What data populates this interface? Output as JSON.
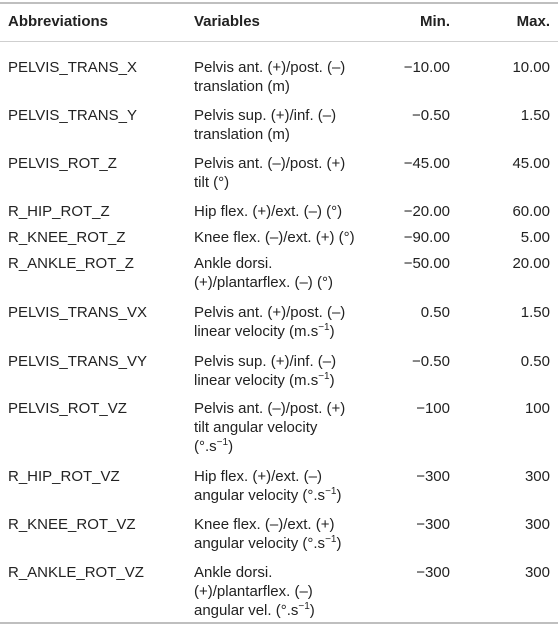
{
  "table": {
    "headers": {
      "abbr": "Abbreviations",
      "var": "Variables",
      "min": "Min.",
      "max": "Max."
    },
    "rows": [
      {
        "abbr": "PELVIS_TRANS_X",
        "var": [
          "Pelvis ant. (+)/post. (–)",
          "translation (m)"
        ],
        "min": "−10.00",
        "max": "10.00"
      },
      {
        "abbr": "PELVIS_TRANS_Y",
        "var": [
          "Pelvis sup. (+)/inf. (–)",
          "translation (m)"
        ],
        "min": "−0.50",
        "max": "1.50"
      },
      {
        "abbr": "PELVIS_ROT_Z",
        "var": [
          "Pelvis ant. (–)/post. (+)",
          "tilt (°)"
        ],
        "min": "−45.00",
        "max": "45.00"
      },
      {
        "abbr": "R_HIP_ROT_Z",
        "var": [
          "Hip flex. (+)/ext. (–) (°)"
        ],
        "min": "−20.00",
        "max": "60.00"
      },
      {
        "abbr": "R_KNEE_ROT_Z",
        "var": [
          "Knee flex. (–)/ext. (+) (°)"
        ],
        "min": "−90.00",
        "max": "5.00"
      },
      {
        "abbr": "R_ANKLE_ROT_Z",
        "var": [
          "Ankle dorsi.",
          "(+)/plantarflex. (–) (°)"
        ],
        "min": "−50.00",
        "max": "20.00"
      },
      {
        "abbr": "PELVIS_TRANS_VX",
        "var": [
          "Pelvis ant. (+)/post. (–)",
          "linear velocity (m.s",
          "−1",
          ")"
        ],
        "min": "0.50",
        "max": "1.50"
      },
      {
        "abbr": "PELVIS_TRANS_VY",
        "var": [
          "Pelvis sup. (+)/inf. (–)",
          "linear velocity (m.s",
          "−1",
          ")"
        ],
        "min": "−0.50",
        "max": "0.50"
      },
      {
        "abbr": "PELVIS_ROT_VZ",
        "var": [
          "Pelvis ant. (–)/post. (+)",
          "tilt angular velocity",
          "(°.s",
          "−1",
          ")"
        ],
        "min": "−100",
        "max": "100"
      },
      {
        "abbr": "R_HIP_ROT_VZ",
        "var": [
          "Hip flex. (+)/ext. (–)",
          "angular velocity (°.s",
          "−1",
          ")"
        ],
        "min": "−300",
        "max": "300"
      },
      {
        "abbr": "R_KNEE_ROT_VZ",
        "var": [
          "Knee flex. (–)/ext. (+)",
          "angular velocity (°.s",
          "−1",
          ")"
        ],
        "min": "−300",
        "max": "300"
      },
      {
        "abbr": "R_ANKLE_ROT_VZ",
        "var": [
          "Ankle dorsi.",
          "(+)/plantarflex. (–)",
          "angular vel. (°.s",
          "−1",
          ")"
        ],
        "min": "−300",
        "max": "300"
      }
    ]
  }
}
